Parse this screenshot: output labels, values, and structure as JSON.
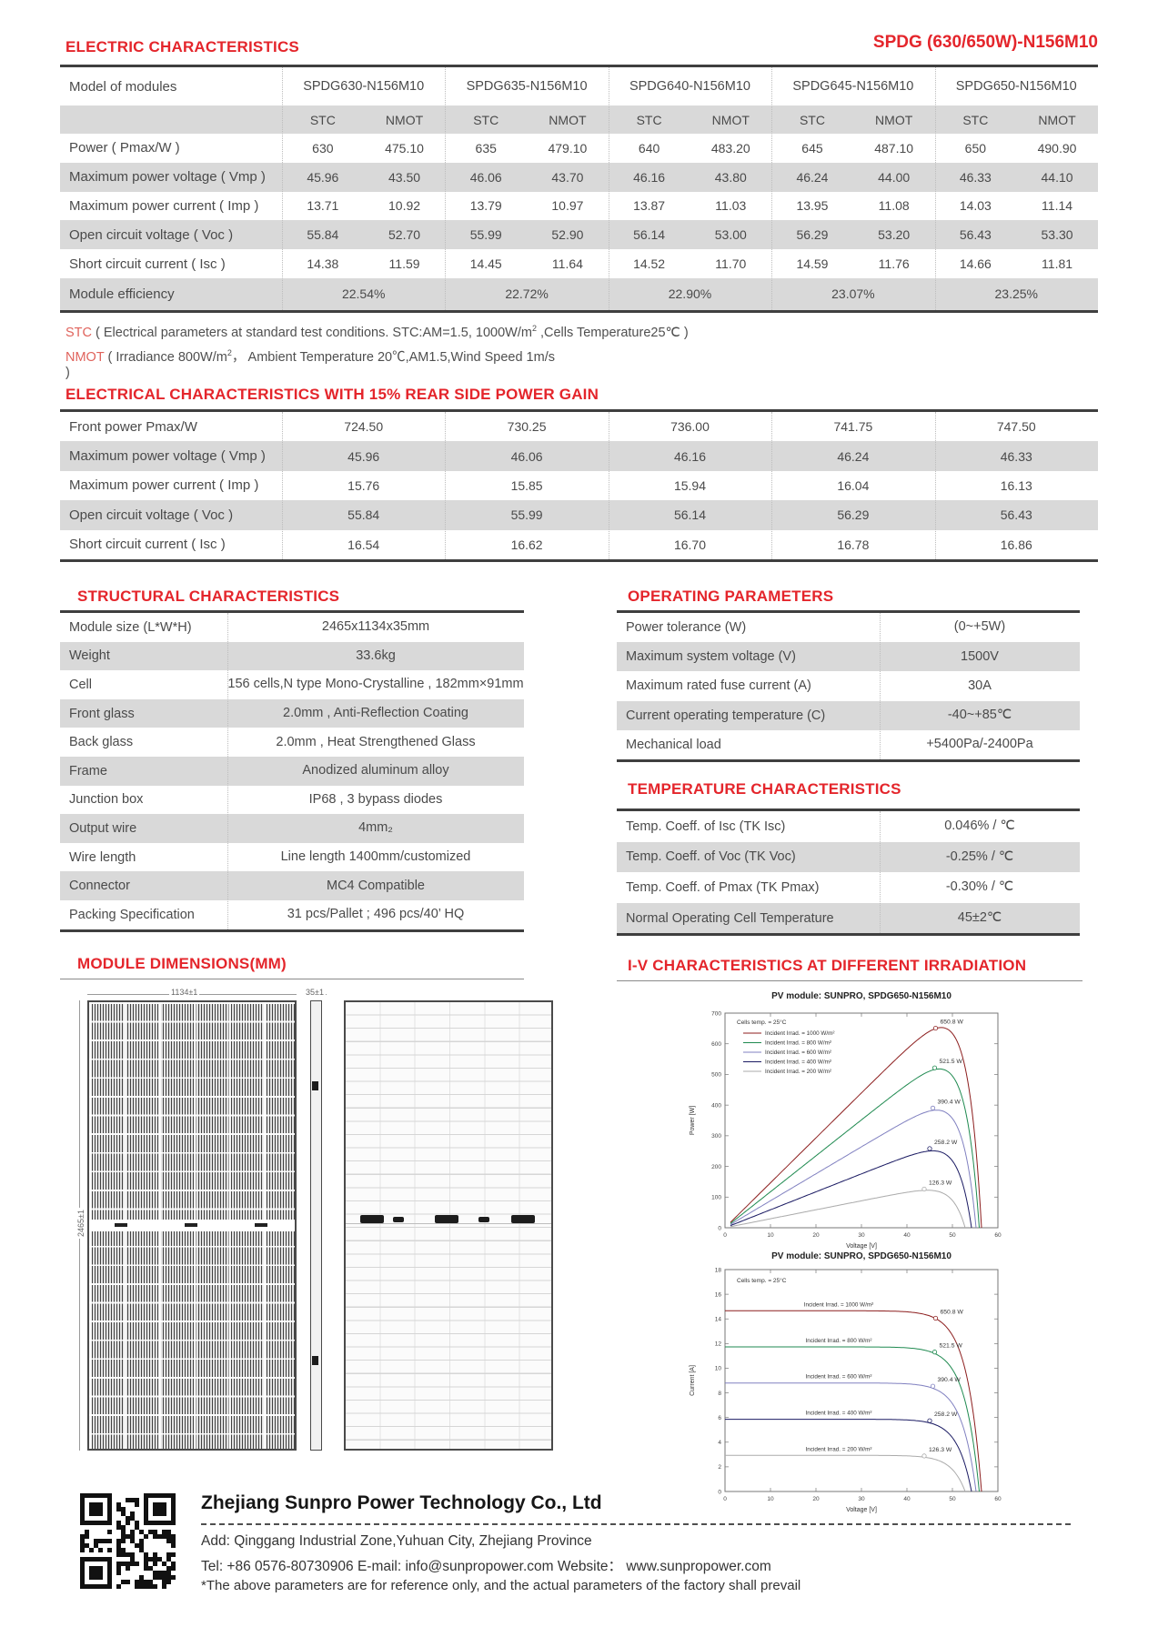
{
  "header": {
    "left_title": "ELECTRIC CHARACTERISTICS",
    "right_title": "SPDG (630/650W)-N156M10"
  },
  "colors": {
    "accent": "#e4252b",
    "row_shade": "#d9d9d9",
    "thick_border": "#3f3f3f"
  },
  "electric_table": {
    "model_label": "Model of modules",
    "models": [
      "SPDG630-N156M10",
      "SPDG635-N156M10",
      "SPDG640-N156M10",
      "SPDG645-N156M10",
      "SPDG650-N156M10"
    ],
    "condition_headers": [
      "STC",
      "NMOT"
    ],
    "rows": [
      {
        "label": "Power ( Pmax/W )",
        "shaded": false,
        "values": [
          "630",
          "475.10",
          "635",
          "479.10",
          "640",
          "483.20",
          "645",
          "487.10",
          "650",
          "490.90"
        ]
      },
      {
        "label": "Maximum power voltage ( Vmp )",
        "shaded": true,
        "values": [
          "45.96",
          "43.50",
          "46.06",
          "43.70",
          "46.16",
          "43.80",
          "46.24",
          "44.00",
          "46.33",
          "44.10"
        ]
      },
      {
        "label": "Maximum power current ( Imp )",
        "shaded": false,
        "values": [
          "13.71",
          "10.92",
          "13.79",
          "10.97",
          "13.87",
          "11.03",
          "13.95",
          "11.08",
          "14.03",
          "11.14"
        ]
      },
      {
        "label": "Open circuit voltage ( Voc )",
        "shaded": true,
        "values": [
          "55.84",
          "52.70",
          "55.99",
          "52.90",
          "56.14",
          "53.00",
          "56.29",
          "53.20",
          "56.43",
          "53.30"
        ]
      },
      {
        "label": "Short circuit current ( Isc )",
        "shaded": false,
        "values": [
          "14.38",
          "11.59",
          "14.45",
          "11.64",
          "14.52",
          "11.70",
          "14.59",
          "11.76",
          "14.66",
          "11.81"
        ]
      }
    ],
    "efficiency_row": {
      "label": "Module efficiency",
      "shaded": true,
      "values": [
        "22.54%",
        "22.72%",
        "22.90%",
        "23.07%",
        "23.25%"
      ]
    }
  },
  "notes": {
    "stc_term": "STC",
    "stc_pre": " ( Electrical parameters at standard test conditions. STC:AM=1.5, 1000W/m",
    "stc_sup": "2",
    "stc_tail": " ,Cells Temperature25℃ )",
    "nmot_term": "NMOT",
    "nmot_pre": " ( Irradiance 800W/m",
    "nmot_sup": "2",
    "nmot_tail": "，  Ambient Temperature 20℃,AM1.5,Wind Speed 1m/s",
    "close_paren": ")"
  },
  "rear_gain_table": {
    "title": "ELECTRICAL CHARACTERISTICS WITH 15% REAR SIDE POWER GAIN",
    "rows": [
      {
        "label": "Front power Pmax/W",
        "shaded": false,
        "values": [
          "724.50",
          "730.25",
          "736.00",
          "741.75",
          "747.50"
        ]
      },
      {
        "label": "Maximum power voltage ( Vmp )",
        "shaded": true,
        "values": [
          "45.96",
          "46.06",
          "46.16",
          "46.24",
          "46.33"
        ]
      },
      {
        "label": "Maximum power current ( Imp )",
        "shaded": false,
        "values": [
          "15.76",
          "15.85",
          "15.94",
          "16.04",
          "16.13"
        ]
      },
      {
        "label": "Open circuit voltage ( Voc )",
        "shaded": true,
        "values": [
          "55.84",
          "55.99",
          "56.14",
          "56.29",
          "56.43"
        ]
      },
      {
        "label": "Short circuit current ( Isc )",
        "shaded": false,
        "values": [
          "16.54",
          "16.62",
          "16.70",
          "16.78",
          "16.86"
        ]
      }
    ]
  },
  "structural_table": {
    "title": "STRUCTURAL CHARACTERISTICS",
    "rows": [
      {
        "label": "Module size (L*W*H)",
        "value": "2465x1134x35mm",
        "shaded": false
      },
      {
        "label": "Weight",
        "value": "33.6kg",
        "shaded": true
      },
      {
        "label": "Cell",
        "value": "156 cells,N type Mono-Crystalline , 182mm×91mm",
        "shaded": false
      },
      {
        "label": "Front glass",
        "value": "2.0mm , Anti-Reflection Coating",
        "shaded": true
      },
      {
        "label": "Back glass",
        "value": "2.0mm , Heat Strengthened Glass",
        "shaded": false
      },
      {
        "label": "Frame",
        "value": "Anodized aluminum alloy",
        "shaded": true
      },
      {
        "label": "Junction box",
        "value": "IP68 , 3 bypass diodes",
        "shaded": false
      },
      {
        "label": "Output wire",
        "value": "4mm₂",
        "shaded": true
      },
      {
        "label": "Wire length",
        "value": "Line length 1400mm/customized",
        "shaded": false
      },
      {
        "label": "Connector",
        "value": "MC4 Compatible",
        "shaded": true
      },
      {
        "label": "Packing Specification",
        "value": "31 pcs/Pallet ; 496 pcs/40’  HQ",
        "shaded": false
      }
    ]
  },
  "operating_table": {
    "title": "OPERATING PARAMETERS",
    "rows": [
      {
        "label": "Power tolerance (W)",
        "value": "(0~+5W)",
        "shaded": false
      },
      {
        "label": "Maximum system voltage (V)",
        "value": "1500V",
        "shaded": true
      },
      {
        "label": "Maximum rated fuse current (A)",
        "value": "30A",
        "shaded": false
      },
      {
        "label": "Current operating temperature (C)",
        "value": "-40~+85℃",
        "shaded": true
      },
      {
        "label": "Mechanical load",
        "value": "+5400Pa/-2400Pa",
        "shaded": false
      }
    ]
  },
  "temperature_table": {
    "title": "TEMPERATURE CHARACTERISTICS",
    "rows": [
      {
        "label": "Temp. Coeff. of Isc (TK Isc)",
        "value": "0.046% / ℃",
        "shaded": false
      },
      {
        "label": "Temp. Coeff. of Voc (TK Voc)",
        "value": "-0.25% / ℃",
        "shaded": true
      },
      {
        "label": "Temp. Coeff. of Pmax (TK Pmax)",
        "value": "-0.30% / ℃",
        "shaded": false
      },
      {
        "label": "Normal Operating Cell Temperature",
        "value": "45±2℃",
        "shaded": true
      }
    ]
  },
  "dimensions_section": {
    "title": "MODULE DIMENSIONS(MM)",
    "width_label": "1134±1",
    "thickness_label": "35±1",
    "height_label": "2465±1"
  },
  "iv_section": {
    "title": "I-V CHARACTERISTICS AT DIFFERENT IRRADIATION"
  },
  "chart_data": [
    {
      "type": "line",
      "variant": "power-voltage",
      "title": "PV module:  SUNPRO,  SPDG650-N156M10",
      "xlabel": "Voltage [V]",
      "ylabel": "Power [W]",
      "xlim": [
        0,
        60
      ],
      "ylim": [
        0,
        700
      ],
      "xtick_step": 10,
      "ytick_step": 100,
      "grid": false,
      "legend_position": "top-left",
      "cells_temp_note": "Cells temp. = 25°C",
      "series": [
        {
          "irrad_label": "Incident Irrad. = 1000 W/m²",
          "color": "#8c1d1d",
          "isc": 14.66,
          "voc": 56.4,
          "vmp": 46.3,
          "pmax": 650.8,
          "point_label": "650.8 W"
        },
        {
          "irrad_label": "Incident Irrad. = 800 W/m²",
          "color": "#1f8a50",
          "isc": 11.73,
          "voc": 55.9,
          "vmp": 46.1,
          "pmax": 521.5,
          "point_label": "521.5 W"
        },
        {
          "irrad_label": "Incident Irrad. = 600 W/m²",
          "color": "#8080c0",
          "isc": 8.8,
          "voc": 55.2,
          "vmp": 45.7,
          "pmax": 390.4,
          "point_label": "390.4 W"
        },
        {
          "irrad_label": "Incident Irrad. = 400 W/m²",
          "color": "#1b1b63",
          "isc": 5.86,
          "voc": 54.2,
          "vmp": 45.0,
          "pmax": 258.2,
          "point_label": "258.2 W"
        },
        {
          "irrad_label": "Incident Irrad. = 200 W/m²",
          "color": "#ababab",
          "isc": 2.93,
          "voc": 52.8,
          "vmp": 43.8,
          "pmax": 126.3,
          "point_label": "126.3 W"
        }
      ]
    },
    {
      "type": "line",
      "variant": "current-voltage",
      "title": "PV module:  SUNPRO,  SPDG650-N156M10",
      "xlabel": "Voltage [V]",
      "ylabel": "Current [A]",
      "xlim": [
        0,
        60
      ],
      "ylim": [
        0,
        18
      ],
      "xtick_step": 10,
      "ytick_step": 2,
      "grid": false,
      "legend_position": "inline-curve-labels",
      "cells_temp_note": "Cells temp. = 25°C",
      "series": [
        {
          "irrad_label": "Incident Irrad. = 1000 W/m²",
          "color": "#8c1d1d",
          "isc": 14.66,
          "voc": 56.4,
          "vmp": 46.3,
          "pmax": 650.8,
          "point_label": "650.8 W"
        },
        {
          "irrad_label": "Incident Irrad. = 800 W/m²",
          "color": "#1f8a50",
          "isc": 11.73,
          "voc": 55.9,
          "vmp": 46.1,
          "pmax": 521.5,
          "point_label": "521.5 W"
        },
        {
          "irrad_label": "Incident Irrad. = 600 W/m²",
          "color": "#8080c0",
          "isc": 8.8,
          "voc": 55.2,
          "vmp": 45.7,
          "pmax": 390.4,
          "point_label": "390.4 W"
        },
        {
          "irrad_label": "Incident Irrad. = 400 W/m²",
          "color": "#1b1b63",
          "isc": 5.86,
          "voc": 54.2,
          "vmp": 45.0,
          "pmax": 258.2,
          "point_label": "258.2 W"
        },
        {
          "irrad_label": "Incident Irrad. = 200 W/m²",
          "color": "#ababab",
          "isc": 2.93,
          "voc": 52.8,
          "vmp": 43.8,
          "pmax": 126.3,
          "point_label": "126.3 W"
        }
      ]
    }
  ],
  "footer": {
    "company": "Zhejiang Sunpro Power Technology Co., Ltd",
    "address": "Add: Qinggang Industrial Zone,Yuhuan City, Zhejiang Province",
    "contact": "Tel: +86 0576-80730906   E-mail: info@sunpropower.com  Website：  www.sunpropower.com",
    "note": "*The above parameters are for reference only, and the actual parameters of the factory shall prevail"
  }
}
